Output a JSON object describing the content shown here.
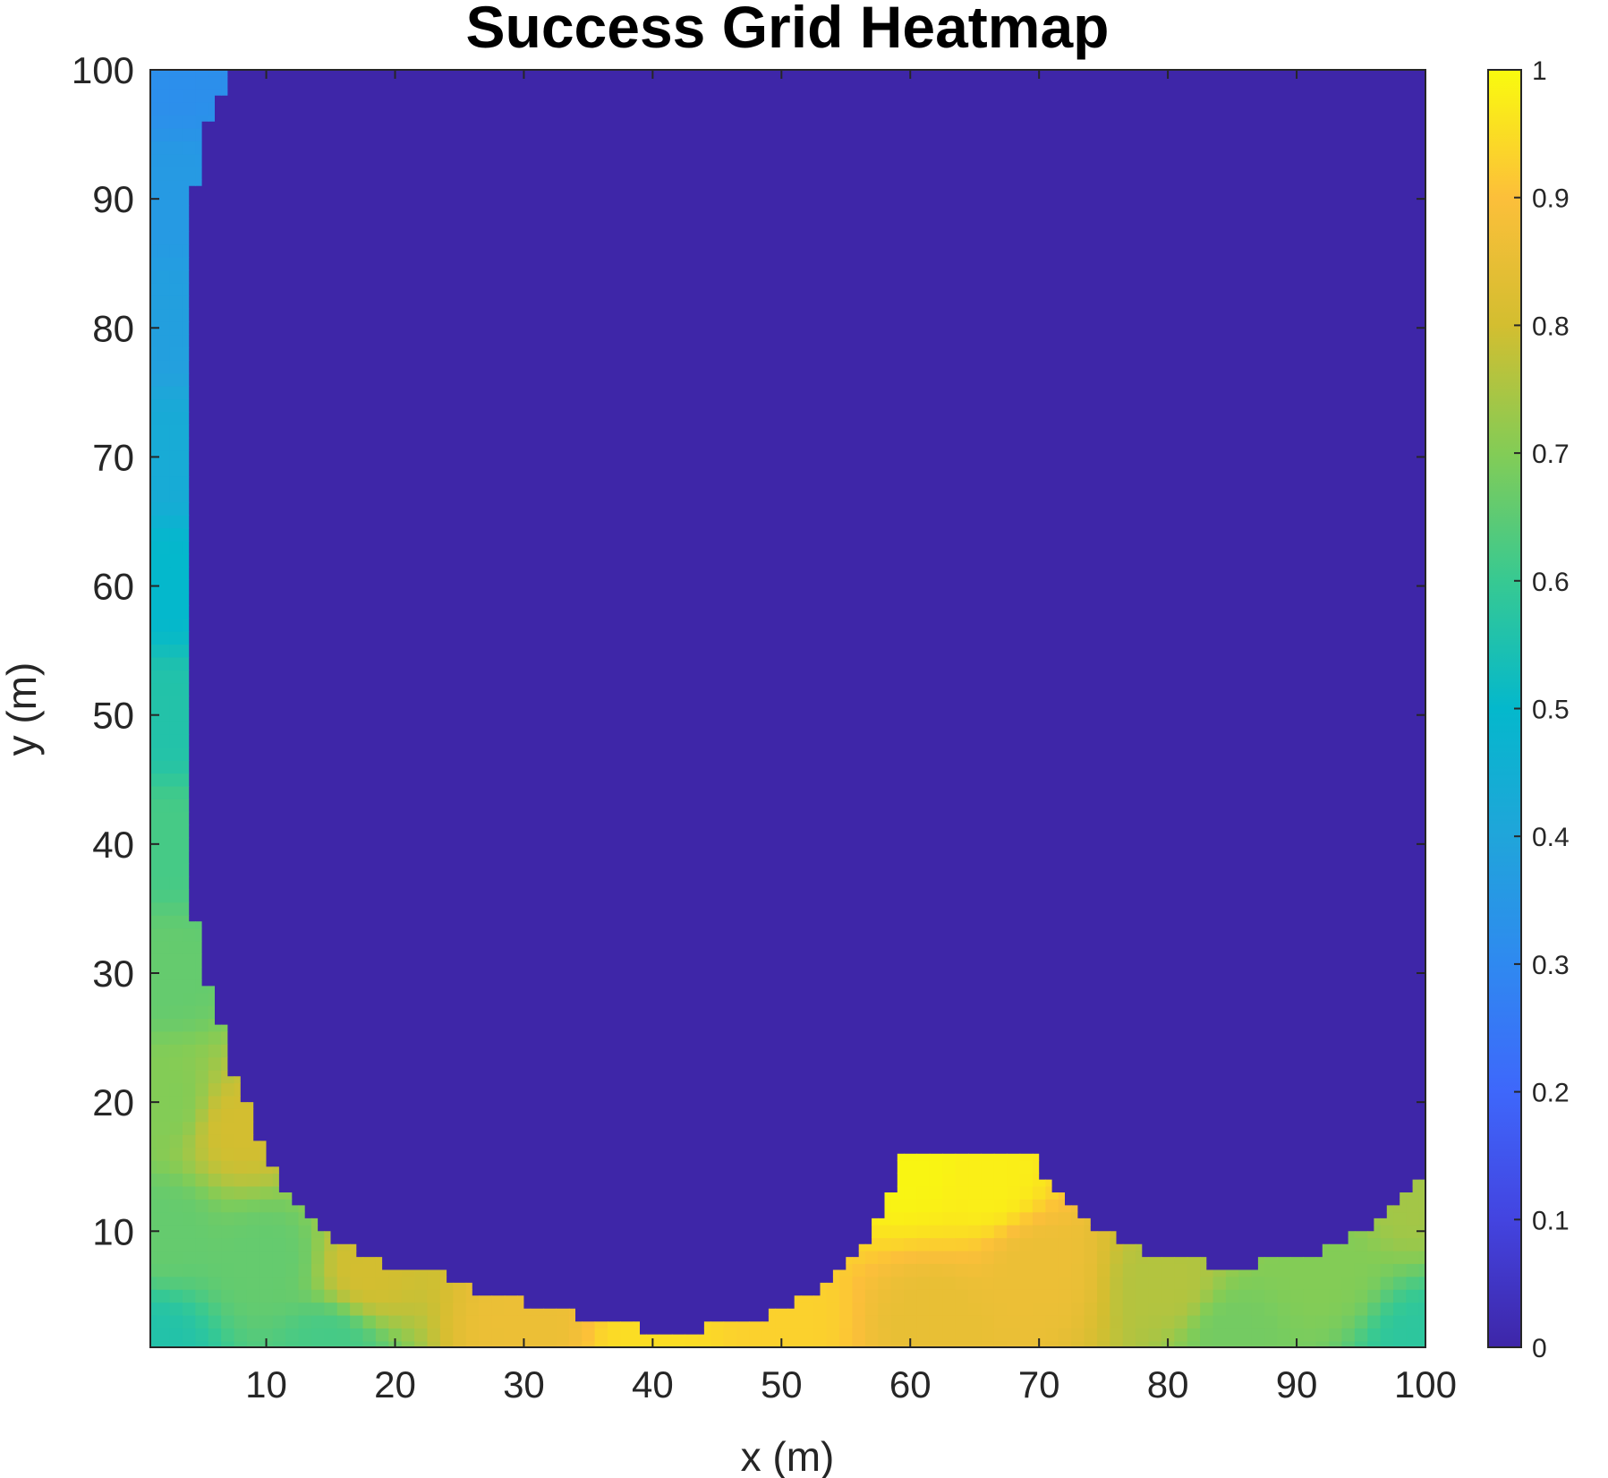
{
  "chart_data": {
    "type": "heatmap",
    "title": "Success Grid Heatmap",
    "xlabel": "x (m)",
    "ylabel": "y (m)",
    "xlim": [
      1,
      100
    ],
    "ylim": [
      1,
      100
    ],
    "x_ticks": [
      "10",
      "20",
      "30",
      "40",
      "50",
      "60",
      "70",
      "80",
      "90",
      "100"
    ],
    "y_ticks": [
      "10",
      "20",
      "30",
      "40",
      "50",
      "60",
      "70",
      "80",
      "90",
      "100"
    ],
    "colorbar": {
      "clim": [
        0,
        1
      ],
      "ticks": [
        "0",
        "0.1",
        "0.2",
        "0.3",
        "0.4",
        "0.5",
        "0.6",
        "0.7",
        "0.8",
        "0.9",
        "1"
      ],
      "colormap": "parula"
    },
    "grid": false,
    "background_value": 0,
    "region_boundary": [
      {
        "x": 1,
        "y": 100
      },
      {
        "x": 7,
        "y": 100
      },
      {
        "x": 7,
        "y": 98
      },
      {
        "x": 6,
        "y": 98
      },
      {
        "x": 6,
        "y": 96
      },
      {
        "x": 5,
        "y": 96
      },
      {
        "x": 5,
        "y": 91
      },
      {
        "x": 4,
        "y": 91
      },
      {
        "x": 4,
        "y": 34
      },
      {
        "x": 5,
        "y": 34
      },
      {
        "x": 5,
        "y": 29
      },
      {
        "x": 6,
        "y": 29
      },
      {
        "x": 6,
        "y": 26
      },
      {
        "x": 7,
        "y": 26
      },
      {
        "x": 7,
        "y": 22
      },
      {
        "x": 8,
        "y": 22
      },
      {
        "x": 8,
        "y": 20
      },
      {
        "x": 9,
        "y": 20
      },
      {
        "x": 9,
        "y": 17
      },
      {
        "x": 10,
        "y": 17
      },
      {
        "x": 10,
        "y": 15
      },
      {
        "x": 11,
        "y": 15
      },
      {
        "x": 11,
        "y": 13
      },
      {
        "x": 12,
        "y": 13
      },
      {
        "x": 12,
        "y": 12
      },
      {
        "x": 13,
        "y": 12
      },
      {
        "x": 13,
        "y": 11
      },
      {
        "x": 14,
        "y": 11
      },
      {
        "x": 14,
        "y": 10
      },
      {
        "x": 15,
        "y": 10
      },
      {
        "x": 15,
        "y": 9
      },
      {
        "x": 17,
        "y": 9
      },
      {
        "x": 17,
        "y": 8
      },
      {
        "x": 19,
        "y": 8
      },
      {
        "x": 19,
        "y": 7
      },
      {
        "x": 24,
        "y": 7
      },
      {
        "x": 24,
        "y": 6
      },
      {
        "x": 26,
        "y": 6
      },
      {
        "x": 26,
        "y": 5
      },
      {
        "x": 30,
        "y": 5
      },
      {
        "x": 30,
        "y": 4
      },
      {
        "x": 34,
        "y": 4
      },
      {
        "x": 34,
        "y": 3
      },
      {
        "x": 39,
        "y": 3
      },
      {
        "x": 39,
        "y": 2
      },
      {
        "x": 44,
        "y": 2
      },
      {
        "x": 44,
        "y": 3
      },
      {
        "x": 49,
        "y": 3
      },
      {
        "x": 49,
        "y": 4
      },
      {
        "x": 51,
        "y": 4
      },
      {
        "x": 51,
        "y": 5
      },
      {
        "x": 53,
        "y": 5
      },
      {
        "x": 53,
        "y": 6
      },
      {
        "x": 54,
        "y": 6
      },
      {
        "x": 54,
        "y": 7
      },
      {
        "x": 55,
        "y": 7
      },
      {
        "x": 55,
        "y": 8
      },
      {
        "x": 56,
        "y": 8
      },
      {
        "x": 56,
        "y": 9
      },
      {
        "x": 57,
        "y": 9
      },
      {
        "x": 57,
        "y": 11
      },
      {
        "x": 58,
        "y": 11
      },
      {
        "x": 58,
        "y": 13
      },
      {
        "x": 59,
        "y": 13
      },
      {
        "x": 59,
        "y": 16
      },
      {
        "x": 70,
        "y": 16
      },
      {
        "x": 70,
        "y": 14
      },
      {
        "x": 71,
        "y": 14
      },
      {
        "x": 71,
        "y": 13
      },
      {
        "x": 72,
        "y": 13
      },
      {
        "x": 72,
        "y": 12
      },
      {
        "x": 73,
        "y": 12
      },
      {
        "x": 73,
        "y": 11
      },
      {
        "x": 74,
        "y": 11
      },
      {
        "x": 74,
        "y": 10
      },
      {
        "x": 76,
        "y": 10
      },
      {
        "x": 76,
        "y": 9
      },
      {
        "x": 78,
        "y": 9
      },
      {
        "x": 78,
        "y": 8
      },
      {
        "x": 83,
        "y": 8
      },
      {
        "x": 83,
        "y": 7
      },
      {
        "x": 87,
        "y": 7
      },
      {
        "x": 87,
        "y": 8
      },
      {
        "x": 92,
        "y": 8
      },
      {
        "x": 92,
        "y": 9
      },
      {
        "x": 94,
        "y": 9
      },
      {
        "x": 94,
        "y": 10
      },
      {
        "x": 96,
        "y": 10
      },
      {
        "x": 96,
        "y": 11
      },
      {
        "x": 97,
        "y": 11
      },
      {
        "x": 97,
        "y": 12
      },
      {
        "x": 98,
        "y": 12
      },
      {
        "x": 98,
        "y": 13
      },
      {
        "x": 99,
        "y": 13
      },
      {
        "x": 99,
        "y": 14
      },
      {
        "x": 100,
        "y": 14
      },
      {
        "x": 100,
        "y": 1
      },
      {
        "x": 1,
        "y": 1
      }
    ],
    "region_samples": [
      {
        "x": 2,
        "y": 100,
        "value": 0.32
      },
      {
        "x": 2,
        "y": 90,
        "value": 0.36
      },
      {
        "x": 2,
        "y": 80,
        "value": 0.38
      },
      {
        "x": 2,
        "y": 70,
        "value": 0.43
      },
      {
        "x": 2,
        "y": 60,
        "value": 0.5
      },
      {
        "x": 2,
        "y": 50,
        "value": 0.56
      },
      {
        "x": 2,
        "y": 40,
        "value": 0.62
      },
      {
        "x": 2,
        "y": 30,
        "value": 0.66
      },
      {
        "x": 2,
        "y": 20,
        "value": 0.7
      },
      {
        "x": 2,
        "y": 10,
        "value": 0.66
      },
      {
        "x": 1,
        "y": 1,
        "value": 0.56
      },
      {
        "x": 8,
        "y": 18,
        "value": 0.8
      },
      {
        "x": 10,
        "y": 8,
        "value": 0.66
      },
      {
        "x": 15,
        "y": 1,
        "value": 0.62
      },
      {
        "x": 18,
        "y": 7,
        "value": 0.8
      },
      {
        "x": 30,
        "y": 3,
        "value": 0.86
      },
      {
        "x": 40,
        "y": 1,
        "value": 0.95
      },
      {
        "x": 50,
        "y": 3,
        "value": 0.93
      },
      {
        "x": 60,
        "y": 15,
        "value": 0.99
      },
      {
        "x": 66,
        "y": 14,
        "value": 0.98
      },
      {
        "x": 62,
        "y": 3,
        "value": 0.85
      },
      {
        "x": 70,
        "y": 7,
        "value": 0.86
      },
      {
        "x": 80,
        "y": 6,
        "value": 0.76
      },
      {
        "x": 85,
        "y": 2,
        "value": 0.68
      },
      {
        "x": 92,
        "y": 7,
        "value": 0.7
      },
      {
        "x": 99,
        "y": 13,
        "value": 0.74
      },
      {
        "x": 100,
        "y": 1,
        "value": 0.58
      }
    ]
  }
}
